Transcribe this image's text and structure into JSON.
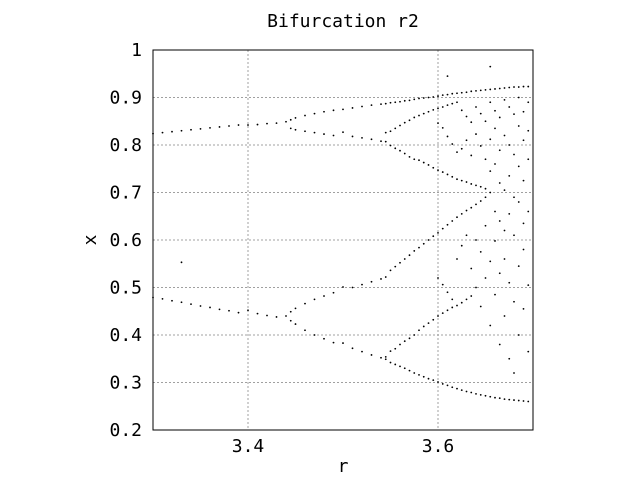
{
  "chart_data": {
    "type": "scatter",
    "title": "Bifurcation r2",
    "xlabel": "r",
    "ylabel": "x",
    "xlim": [
      3.3,
      3.7
    ],
    "ylim": [
      0.2,
      1.0
    ],
    "x_ticks": [
      3.4,
      3.6
    ],
    "x_tick_labels": [
      "3.4",
      "3.6"
    ],
    "y_ticks": [
      0.2,
      0.3,
      0.4,
      0.5,
      0.6,
      0.7,
      0.8,
      0.9,
      1.0
    ],
    "y_tick_labels": [
      "0.2",
      "0.3",
      "0.4",
      "0.5",
      "0.6",
      "0.7",
      "0.8",
      "0.9",
      "1"
    ],
    "grid": true,
    "series": [
      {
        "marker": "dot",
        "color": "#000000",
        "points": [
          [
            3.3,
            0.824
          ],
          [
            3.3,
            0.479
          ],
          [
            3.31,
            0.826
          ],
          [
            3.31,
            0.476
          ],
          [
            3.32,
            0.828
          ],
          [
            3.32,
            0.472
          ],
          [
            3.33,
            0.83
          ],
          [
            3.33,
            0.469
          ],
          [
            3.34,
            0.832
          ],
          [
            3.34,
            0.465
          ],
          [
            3.35,
            0.834
          ],
          [
            3.35,
            0.461
          ],
          [
            3.36,
            0.836
          ],
          [
            3.36,
            0.458
          ],
          [
            3.37,
            0.838
          ],
          [
            3.37,
            0.454
          ],
          [
            3.38,
            0.84
          ],
          [
            3.38,
            0.451
          ],
          [
            3.39,
            0.842
          ],
          [
            3.39,
            0.447
          ],
          [
            3.4,
            0.842
          ],
          [
            3.4,
            0.452
          ],
          [
            3.41,
            0.843
          ],
          [
            3.41,
            0.445
          ],
          [
            3.42,
            0.845
          ],
          [
            3.42,
            0.441
          ],
          [
            3.43,
            0.846
          ],
          [
            3.43,
            0.438
          ],
          [
            3.44,
            0.849
          ],
          [
            3.44,
            0.44
          ],
          [
            3.445,
            0.853
          ],
          [
            3.445,
            0.835
          ],
          [
            3.445,
            0.449
          ],
          [
            3.445,
            0.43
          ],
          [
            3.45,
            0.857
          ],
          [
            3.45,
            0.832
          ],
          [
            3.45,
            0.456
          ],
          [
            3.45,
            0.423
          ],
          [
            3.46,
            0.862
          ],
          [
            3.46,
            0.829
          ],
          [
            3.46,
            0.466
          ],
          [
            3.46,
            0.41
          ],
          [
            3.47,
            0.866
          ],
          [
            3.47,
            0.826
          ],
          [
            3.47,
            0.475
          ],
          [
            3.47,
            0.4
          ],
          [
            3.48,
            0.87
          ],
          [
            3.48,
            0.823
          ],
          [
            3.48,
            0.482
          ],
          [
            3.48,
            0.392
          ],
          [
            3.49,
            0.873
          ],
          [
            3.49,
            0.82
          ],
          [
            3.49,
            0.489
          ],
          [
            3.49,
            0.384
          ],
          [
            3.5,
            0.875
          ],
          [
            3.5,
            0.827
          ],
          [
            3.5,
            0.501
          ],
          [
            3.5,
            0.383
          ],
          [
            3.51,
            0.878
          ],
          [
            3.51,
            0.818
          ],
          [
            3.51,
            0.5
          ],
          [
            3.51,
            0.372
          ],
          [
            3.52,
            0.881
          ],
          [
            3.52,
            0.815
          ],
          [
            3.52,
            0.506
          ],
          [
            3.52,
            0.365
          ],
          [
            3.53,
            0.884
          ],
          [
            3.53,
            0.812
          ],
          [
            3.53,
            0.512
          ],
          [
            3.53,
            0.358
          ],
          [
            3.54,
            0.886
          ],
          [
            3.54,
            0.808
          ],
          [
            3.54,
            0.518
          ],
          [
            3.54,
            0.352
          ],
          [
            3.545,
            0.887
          ],
          [
            3.545,
            0.826
          ],
          [
            3.545,
            0.807
          ],
          [
            3.545,
            0.522
          ],
          [
            3.545,
            0.354
          ],
          [
            3.545,
            0.349
          ],
          [
            3.55,
            0.889
          ],
          [
            3.55,
            0.829
          ],
          [
            3.55,
            0.799
          ],
          [
            3.55,
            0.536
          ],
          [
            3.55,
            0.366
          ],
          [
            3.55,
            0.342
          ],
          [
            3.555,
            0.89
          ],
          [
            3.555,
            0.835
          ],
          [
            3.555,
            0.793
          ],
          [
            3.555,
            0.544
          ],
          [
            3.555,
            0.371
          ],
          [
            3.555,
            0.338
          ],
          [
            3.56,
            0.891
          ],
          [
            3.56,
            0.841
          ],
          [
            3.56,
            0.788
          ],
          [
            3.56,
            0.552
          ],
          [
            3.56,
            0.38
          ],
          [
            3.56,
            0.334
          ],
          [
            3.565,
            0.893
          ],
          [
            3.565,
            0.847
          ],
          [
            3.565,
            0.782
          ],
          [
            3.565,
            0.56
          ],
          [
            3.565,
            0.387
          ],
          [
            3.565,
            0.33
          ],
          [
            3.57,
            0.894
          ],
          [
            3.57,
            0.852
          ],
          [
            3.57,
            0.775
          ],
          [
            3.57,
            0.568
          ],
          [
            3.57,
            0.393
          ],
          [
            3.57,
            0.325
          ],
          [
            3.575,
            0.896
          ],
          [
            3.575,
            0.858
          ],
          [
            3.575,
            0.77
          ],
          [
            3.575,
            0.577
          ],
          [
            3.575,
            0.4
          ],
          [
            3.575,
            0.32
          ],
          [
            3.58,
            0.898
          ],
          [
            3.58,
            0.862
          ],
          [
            3.58,
            0.768
          ],
          [
            3.58,
            0.584
          ],
          [
            3.58,
            0.41
          ],
          [
            3.58,
            0.316
          ],
          [
            3.585,
            0.899
          ],
          [
            3.585,
            0.866
          ],
          [
            3.585,
            0.763
          ],
          [
            3.585,
            0.592
          ],
          [
            3.585,
            0.418
          ],
          [
            3.585,
            0.312
          ],
          [
            3.59,
            0.9
          ],
          [
            3.59,
            0.87
          ],
          [
            3.59,
            0.758
          ],
          [
            3.59,
            0.6
          ],
          [
            3.59,
            0.425
          ],
          [
            3.59,
            0.308
          ],
          [
            3.595,
            0.901
          ],
          [
            3.595,
            0.874
          ],
          [
            3.595,
            0.752
          ],
          [
            3.595,
            0.608
          ],
          [
            3.595,
            0.432
          ],
          [
            3.595,
            0.305
          ],
          [
            3.6,
            0.903
          ],
          [
            3.6,
            0.877
          ],
          [
            3.6,
            0.846
          ],
          [
            3.6,
            0.747
          ],
          [
            3.6,
            0.615
          ],
          [
            3.6,
            0.52
          ],
          [
            3.6,
            0.44
          ],
          [
            3.6,
            0.301
          ],
          [
            3.605,
            0.905
          ],
          [
            3.605,
            0.88
          ],
          [
            3.605,
            0.836
          ],
          [
            3.605,
            0.743
          ],
          [
            3.605,
            0.624
          ],
          [
            3.605,
            0.506
          ],
          [
            3.605,
            0.446
          ],
          [
            3.605,
            0.297
          ],
          [
            3.61,
            0.906
          ],
          [
            3.61,
            0.884
          ],
          [
            3.61,
            0.818
          ],
          [
            3.61,
            0.738
          ],
          [
            3.61,
            0.632
          ],
          [
            3.61,
            0.49
          ],
          [
            3.61,
            0.452
          ],
          [
            3.61,
            0.294
          ],
          [
            3.615,
            0.908
          ],
          [
            3.615,
            0.887
          ],
          [
            3.615,
            0.802
          ],
          [
            3.615,
            0.733
          ],
          [
            3.615,
            0.64
          ],
          [
            3.615,
            0.475
          ],
          [
            3.615,
            0.458
          ],
          [
            3.615,
            0.29
          ],
          [
            3.62,
            0.909
          ],
          [
            3.62,
            0.89
          ],
          [
            3.62,
            0.785
          ],
          [
            3.62,
            0.728
          ],
          [
            3.62,
            0.648
          ],
          [
            3.62,
            0.56
          ],
          [
            3.62,
            0.462
          ],
          [
            3.62,
            0.287
          ],
          [
            3.625,
            0.91
          ],
          [
            3.625,
            0.873
          ],
          [
            3.625,
            0.792
          ],
          [
            3.625,
            0.725
          ],
          [
            3.625,
            0.655
          ],
          [
            3.625,
            0.588
          ],
          [
            3.625,
            0.468
          ],
          [
            3.625,
            0.284
          ],
          [
            3.63,
            0.911
          ],
          [
            3.63,
            0.86
          ],
          [
            3.63,
            0.81
          ],
          [
            3.63,
            0.722
          ],
          [
            3.63,
            0.662
          ],
          [
            3.63,
            0.61
          ],
          [
            3.63,
            0.475
          ],
          [
            3.63,
            0.281
          ],
          [
            3.635,
            0.913
          ],
          [
            3.635,
            0.848
          ],
          [
            3.635,
            0.778
          ],
          [
            3.635,
            0.718
          ],
          [
            3.635,
            0.668
          ],
          [
            3.635,
            0.54
          ],
          [
            3.635,
            0.482
          ],
          [
            3.635,
            0.279
          ],
          [
            3.64,
            0.914
          ],
          [
            3.64,
            0.88
          ],
          [
            3.64,
            0.823
          ],
          [
            3.64,
            0.715
          ],
          [
            3.64,
            0.675
          ],
          [
            3.64,
            0.6
          ],
          [
            3.64,
            0.5
          ],
          [
            3.64,
            0.276
          ],
          [
            3.645,
            0.915
          ],
          [
            3.645,
            0.866
          ],
          [
            3.645,
            0.798
          ],
          [
            3.645,
            0.712
          ],
          [
            3.645,
            0.682
          ],
          [
            3.645,
            0.575
          ],
          [
            3.645,
            0.46
          ],
          [
            3.645,
            0.274
          ],
          [
            3.65,
            0.916
          ],
          [
            3.65,
            0.85
          ],
          [
            3.65,
            0.77
          ],
          [
            3.65,
            0.708
          ],
          [
            3.65,
            0.69
          ],
          [
            3.65,
            0.63
          ],
          [
            3.65,
            0.52
          ],
          [
            3.65,
            0.272
          ],
          [
            3.655,
            0.917
          ],
          [
            3.655,
            0.89
          ],
          [
            3.655,
            0.812
          ],
          [
            3.655,
            0.745
          ],
          [
            3.655,
            0.7
          ],
          [
            3.655,
            0.555
          ],
          [
            3.655,
            0.42
          ],
          [
            3.655,
            0.27
          ],
          [
            3.66,
            0.918
          ],
          [
            3.66,
            0.872
          ],
          [
            3.66,
            0.835
          ],
          [
            3.66,
            0.76
          ],
          [
            3.66,
            0.66
          ],
          [
            3.66,
            0.598
          ],
          [
            3.66,
            0.485
          ],
          [
            3.66,
            0.268
          ],
          [
            3.665,
            0.919
          ],
          [
            3.665,
            0.858
          ],
          [
            3.665,
            0.789
          ],
          [
            3.665,
            0.72
          ],
          [
            3.665,
            0.64
          ],
          [
            3.665,
            0.53
          ],
          [
            3.665,
            0.38
          ],
          [
            3.665,
            0.267
          ],
          [
            3.67,
            0.92
          ],
          [
            3.67,
            0.895
          ],
          [
            3.67,
            0.82
          ],
          [
            3.67,
            0.705
          ],
          [
            3.67,
            0.62
          ],
          [
            3.67,
            0.56
          ],
          [
            3.67,
            0.44
          ],
          [
            3.67,
            0.265
          ],
          [
            3.675,
            0.921
          ],
          [
            3.675,
            0.88
          ],
          [
            3.675,
            0.8
          ],
          [
            3.675,
            0.735
          ],
          [
            3.675,
            0.655
          ],
          [
            3.675,
            0.51
          ],
          [
            3.675,
            0.35
          ],
          [
            3.675,
            0.264
          ],
          [
            3.68,
            0.922
          ],
          [
            3.68,
            0.865
          ],
          [
            3.68,
            0.78
          ],
          [
            3.68,
            0.69
          ],
          [
            3.68,
            0.61
          ],
          [
            3.68,
            0.47
          ],
          [
            3.68,
            0.32
          ],
          [
            3.68,
            0.263
          ],
          [
            3.685,
            0.922
          ],
          [
            3.685,
            0.9
          ],
          [
            3.685,
            0.84
          ],
          [
            3.685,
            0.755
          ],
          [
            3.685,
            0.68
          ],
          [
            3.685,
            0.545
          ],
          [
            3.685,
            0.4
          ],
          [
            3.685,
            0.262
          ],
          [
            3.69,
            0.923
          ],
          [
            3.69,
            0.87
          ],
          [
            3.69,
            0.81
          ],
          [
            3.69,
            0.725
          ],
          [
            3.69,
            0.635
          ],
          [
            3.69,
            0.58
          ],
          [
            3.69,
            0.455
          ],
          [
            3.69,
            0.261
          ],
          [
            3.695,
            0.923
          ],
          [
            3.695,
            0.89
          ],
          [
            3.695,
            0.83
          ],
          [
            3.695,
            0.77
          ],
          [
            3.695,
            0.66
          ],
          [
            3.695,
            0.505
          ],
          [
            3.695,
            0.365
          ],
          [
            3.695,
            0.26
          ],
          [
            3.33,
            0.553
          ],
          [
            3.61,
            0.945
          ],
          [
            3.655,
            0.965
          ]
        ]
      }
    ]
  }
}
